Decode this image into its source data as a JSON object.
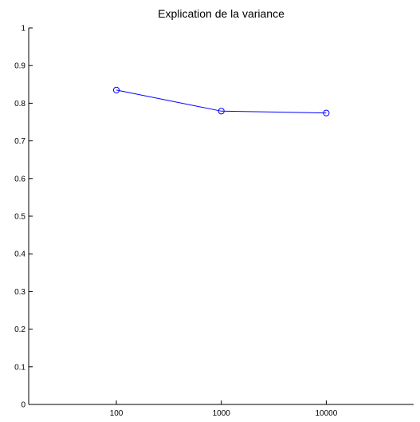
{
  "chart_data": {
    "type": "line",
    "title": "Explication de la variance",
    "xlabel": "",
    "ylabel": "",
    "x_scale": "log",
    "xlim": [
      14.6,
      68000
    ],
    "ylim": [
      0,
      1
    ],
    "grid": false,
    "x_ticks": [
      {
        "value": 100,
        "label": "100"
      },
      {
        "value": 1000,
        "label": "1000"
      },
      {
        "value": 10000,
        "label": "10000"
      }
    ],
    "y_ticks": [
      {
        "value": 0,
        "label": "0"
      },
      {
        "value": 0.1,
        "label": "0.1"
      },
      {
        "value": 0.2,
        "label": "0.2"
      },
      {
        "value": 0.3,
        "label": "0.3"
      },
      {
        "value": 0.4,
        "label": "0.4"
      },
      {
        "value": 0.5,
        "label": "0.5"
      },
      {
        "value": 0.6,
        "label": "0.6"
      },
      {
        "value": 0.7,
        "label": "0.7"
      },
      {
        "value": 0.8,
        "label": "0.8"
      },
      {
        "value": 0.9,
        "label": "0.9"
      },
      {
        "value": 1,
        "label": "1"
      }
    ],
    "series": [
      {
        "x": [
          100,
          1000,
          10000
        ],
        "y": [
          0.835,
          0.779,
          0.774
        ],
        "color": "#0000ff",
        "marker": "circle"
      }
    ]
  }
}
